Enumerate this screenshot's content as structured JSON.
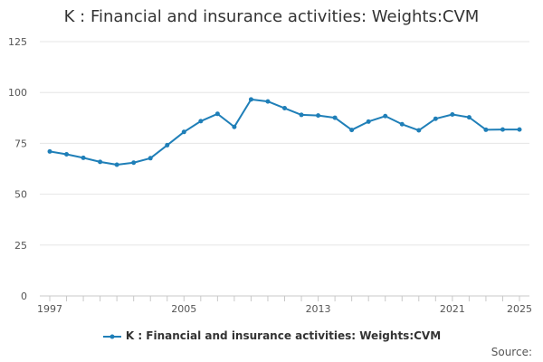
{
  "chart_data": {
    "type": "line",
    "title": "K : Financial and insurance activities: Weights:CVM",
    "xlabel": "",
    "ylabel": "",
    "x": [
      1997,
      1998,
      1999,
      2000,
      2001,
      2002,
      2003,
      2004,
      2005,
      2006,
      2007,
      2008,
      2009,
      2010,
      2011,
      2012,
      2013,
      2014,
      2015,
      2016,
      2017,
      2018,
      2019,
      2020,
      2021,
      2022,
      2023,
      2024,
      2025
    ],
    "xticks": [
      "1997",
      "2005",
      "2013",
      "2021",
      "2025"
    ],
    "yticks": [
      "0",
      "25",
      "50",
      "75",
      "100",
      "125"
    ],
    "ylim": [
      0,
      125
    ],
    "xlim": [
      1997,
      2025
    ],
    "grid": true,
    "legend_position": "bottom",
    "series": [
      {
        "name": "K : Financial and insurance activities: Weights:CVM",
        "color": "#1f7fb8",
        "values": [
          71.0,
          69.6,
          67.9,
          65.9,
          64.5,
          65.5,
          67.7,
          74.1,
          80.6,
          85.9,
          89.5,
          83.1,
          96.6,
          95.6,
          92.3,
          89.0,
          88.7,
          87.6,
          81.6,
          85.7,
          88.4,
          84.4,
          81.4,
          87.1,
          89.2,
          87.8,
          81.7,
          81.8,
          81.8
        ]
      }
    ]
  },
  "source_label": "Source:",
  "colors": {
    "grid": "#e6e6e6",
    "axis": "#c8c8c8",
    "line": "#1f7fb8"
  }
}
